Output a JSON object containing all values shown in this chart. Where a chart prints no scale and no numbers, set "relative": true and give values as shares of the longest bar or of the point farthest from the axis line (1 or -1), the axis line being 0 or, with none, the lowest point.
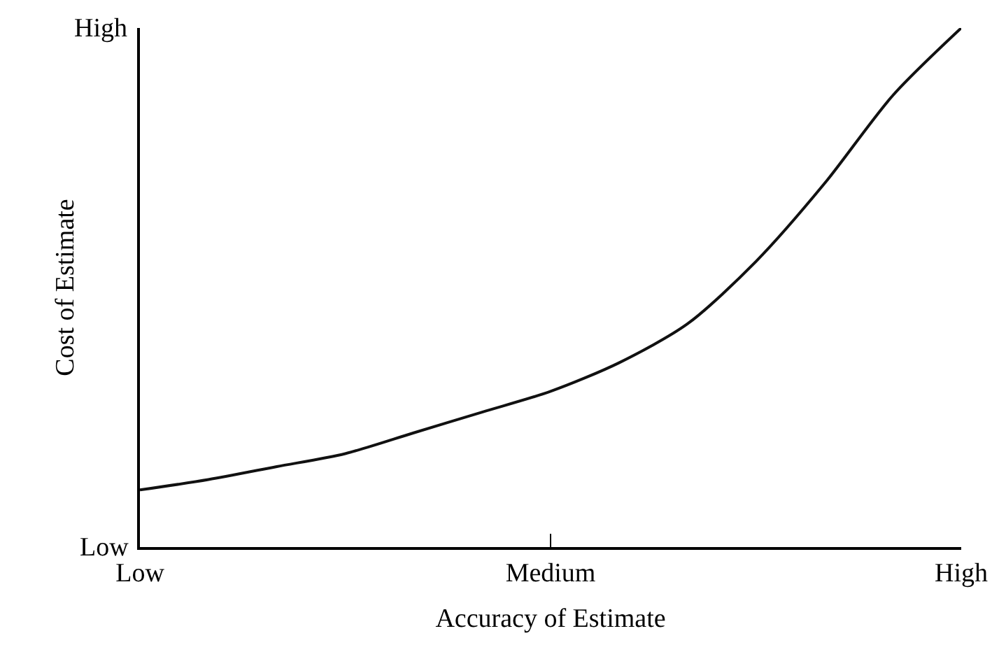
{
  "chart_data": {
    "type": "line",
    "xlabel": "Accuracy of Estimate",
    "ylabel": "Cost of Estimate",
    "relative": true,
    "categories": [
      "Low",
      null,
      null,
      null,
      null,
      null,
      "Medium",
      null,
      null,
      null,
      null,
      null,
      "High"
    ],
    "series": [
      {
        "color": "#111111",
        "values": [
          0.11,
          0.13,
          0.155,
          0.18,
          0.22,
          0.26,
          0.3,
          0.355,
          0.43,
          0.55,
          0.7,
          0.87,
          1
        ]
      }
    ],
    "annotations": [
      "Low",
      "High"
    ],
    "marker": "none",
    "line_style": "solid"
  }
}
